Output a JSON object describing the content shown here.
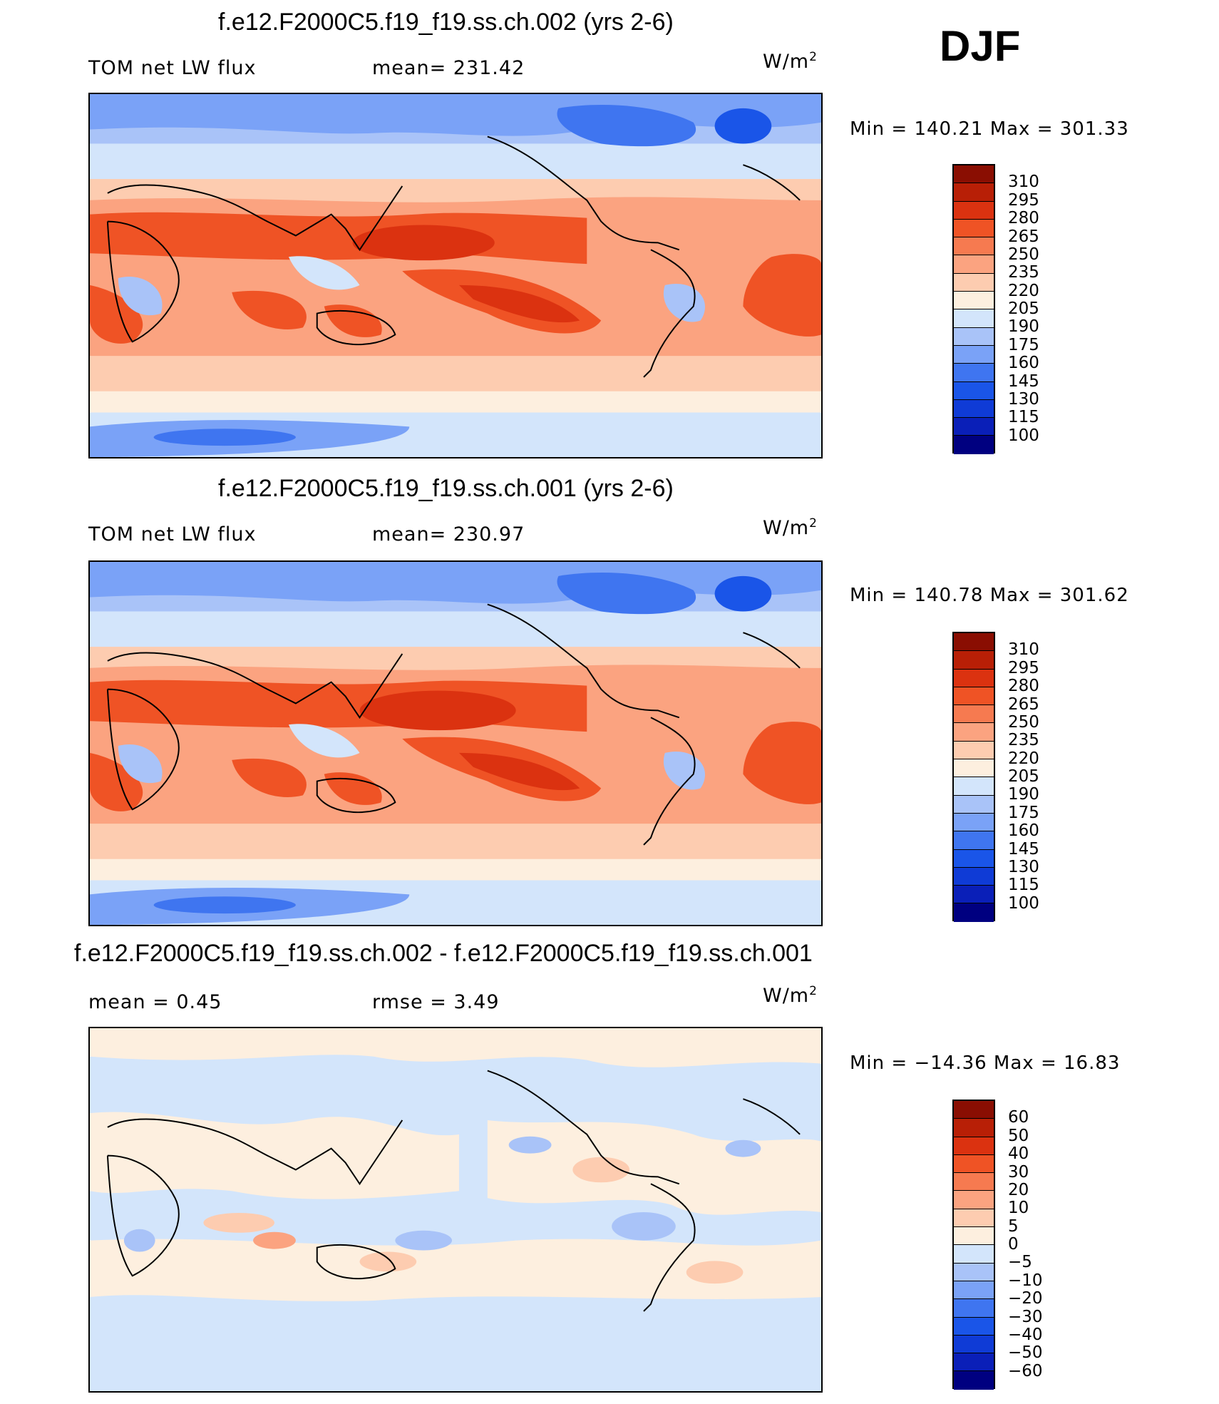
{
  "season": "DJF",
  "palette_abs": [
    "#000080",
    "#0a1fb8",
    "#0f3bd6",
    "#1a55e8",
    "#3f75f0",
    "#7aa2f7",
    "#a9c3f8",
    "#d3e5fb",
    "#fdefdf",
    "#fdccb0",
    "#fba380",
    "#f67a50",
    "#ef5325",
    "#db3210",
    "#b81f06",
    "#8a0e02"
  ],
  "palette_diff": [
    "#000080",
    "#0a1fb8",
    "#0f3bd6",
    "#1a55e8",
    "#3f75f0",
    "#7aa2f7",
    "#a9c3f8",
    "#d3e5fb",
    "#fdefdf",
    "#fdccb0",
    "#fba380",
    "#f67a50",
    "#ef5325",
    "#db3210",
    "#b81f06",
    "#8a0e02"
  ],
  "panels": [
    {
      "title": "f.e12.F2000C5.f19_f19.ss.ch.002 (yrs 2-6)",
      "left_label": "TOM  net  LW  flux",
      "center_label": "mean=  231.42",
      "units": "W/m",
      "units_sup": "2",
      "min_max": "Min  =  140.21  Max  =  301.33",
      "colorbar_labels": [
        "310",
        "295",
        "280",
        "265",
        "250",
        "235",
        "220",
        "205",
        "190",
        "175",
        "160",
        "145",
        "130",
        "115",
        "100"
      ],
      "kind": "abs"
    },
    {
      "title": "f.e12.F2000C5.f19_f19.ss.ch.001 (yrs 2-6)",
      "left_label": "TOM  net  LW  flux",
      "center_label": "mean=  230.97",
      "units": "W/m",
      "units_sup": "2",
      "min_max": "Min  =  140.78  Max  =  301.62",
      "colorbar_labels": [
        "310",
        "295",
        "280",
        "265",
        "250",
        "235",
        "220",
        "205",
        "190",
        "175",
        "160",
        "145",
        "130",
        "115",
        "100"
      ],
      "kind": "abs"
    },
    {
      "title": "f.e12.F2000C5.f19_f19.ss.ch.002 - f.e12.F2000C5.f19_f19.ss.ch.001",
      "left_label": "mean  =     0.45",
      "center_label": "rmse  =     3.49",
      "units": "W/m",
      "units_sup": "2",
      "min_max": "Min  =  −14.36  Max  =    16.83",
      "colorbar_labels": [
        "60",
        "50",
        "40",
        "30",
        "20",
        "10",
        "5",
        "0",
        "−5",
        "−10",
        "−20",
        "−30",
        "−40",
        "−50",
        "−60"
      ],
      "kind": "diff"
    }
  ]
}
